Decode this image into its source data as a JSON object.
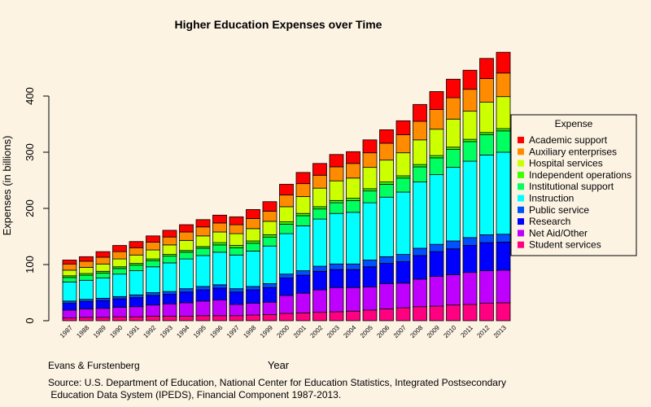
{
  "chart_data": {
    "type": "bar",
    "stacked": true,
    "title": "Higher Education Expenses over Time",
    "xlabel": "Year",
    "ylabel": "Expenses (in billions)",
    "ylim": [
      0,
      480
    ],
    "yticks": [
      0,
      100,
      200,
      300,
      400
    ],
    "grid": false,
    "legend_position": "right",
    "legend_title": "Expense",
    "left_note": "Evans & Furstenberg",
    "source_lines": [
      "Source: U.S. Department of Education, National Center for Education Statistics, Integrated Postsecondary",
      " Education Data System (IPEDS), Financial Component 1987-2013."
    ],
    "categories": [
      "1987",
      "1988",
      "1989",
      "1990",
      "1991",
      "1992",
      "1993",
      "1994",
      "1995",
      "1996",
      "1997",
      "1998",
      "1999",
      "2000",
      "2001",
      "2002",
      "2003",
      "2004",
      "2005",
      "2006",
      "2007",
      "2008",
      "2009",
      "2010",
      "2011",
      "2012",
      "2013"
    ],
    "series": [
      {
        "name": "Student services",
        "color": "#ff0080",
        "values": [
          5,
          6,
          6,
          7,
          7,
          8,
          8,
          8,
          9,
          9,
          9,
          10,
          11,
          13,
          14,
          15,
          16,
          17,
          19,
          21,
          23,
          25,
          26,
          28,
          29,
          31,
          32
        ]
      },
      {
        "name": "Net Aid/Other",
        "color": "#c000ff",
        "values": [
          14,
          15,
          16,
          17,
          18,
          20,
          22,
          24,
          26,
          28,
          20,
          21,
          22,
          32,
          35,
          40,
          43,
          42,
          41,
          45,
          44,
          49,
          53,
          54,
          57,
          58,
          58
        ]
      },
      {
        "name": "Research",
        "color": "#0000ff",
        "values": [
          12,
          13,
          14,
          15,
          16,
          17,
          17,
          19,
          20,
          21,
          22,
          24,
          26,
          31,
          32,
          33,
          32,
          32,
          36,
          36,
          38,
          42,
          44,
          46,
          48,
          50,
          50
        ]
      },
      {
        "name": "Public service",
        "color": "#0050ff",
        "values": [
          4,
          4,
          4,
          4,
          5,
          5,
          5,
          6,
          6,
          6,
          6,
          6,
          7,
          7,
          8,
          9,
          10,
          10,
          12,
          12,
          13,
          13,
          13,
          14,
          14,
          14,
          14
        ]
      },
      {
        "name": "Instruction",
        "color": "#00ffff",
        "values": [
          34,
          34,
          36,
          40,
          43,
          46,
          51,
          53,
          55,
          58,
          60,
          63,
          67,
          72,
          80,
          84,
          90,
          92,
          102,
          106,
          111,
          118,
          124,
          131,
          136,
          142,
          146
        ]
      },
      {
        "name": "Institutional support",
        "color": "#00ff60",
        "values": [
          8,
          9,
          9,
          10,
          10,
          11,
          12,
          12,
          13,
          13,
          13,
          14,
          16,
          17,
          18,
          18,
          19,
          21,
          21,
          23,
          25,
          27,
          30,
          32,
          35,
          36,
          38
        ]
      },
      {
        "name": "Independent operations",
        "color": "#40ff00",
        "values": [
          3,
          3,
          3,
          3,
          3,
          3,
          3,
          3,
          3,
          4,
          4,
          4,
          4,
          4,
          4,
          4,
          4,
          4,
          4,
          4,
          4,
          4,
          4,
          4,
          4,
          4,
          4
        ]
      },
      {
        "name": "Hospital services",
        "color": "#ccff00",
        "values": [
          10,
          11,
          13,
          14,
          15,
          16,
          17,
          18,
          19,
          19,
          21,
          22,
          24,
          27,
          30,
          33,
          35,
          36,
          38,
          39,
          41,
          44,
          47,
          50,
          50,
          54,
          57
        ]
      },
      {
        "name": "Auxiliary enterprises",
        "color": "#ff8c00",
        "values": [
          11,
          11,
          12,
          13,
          13,
          14,
          14,
          15,
          16,
          16,
          16,
          18,
          18,
          21,
          23,
          23,
          25,
          26,
          26,
          30,
          32,
          33,
          35,
          38,
          39,
          42,
          42
        ]
      },
      {
        "name": "Academic support",
        "color": "#ff0000",
        "values": [
          7,
          8,
          10,
          11,
          11,
          11,
          12,
          13,
          13,
          14,
          14,
          16,
          17,
          19,
          20,
          21,
          22,
          21,
          23,
          24,
          25,
          30,
          32,
          33,
          34,
          36,
          37
        ]
      }
    ]
  }
}
